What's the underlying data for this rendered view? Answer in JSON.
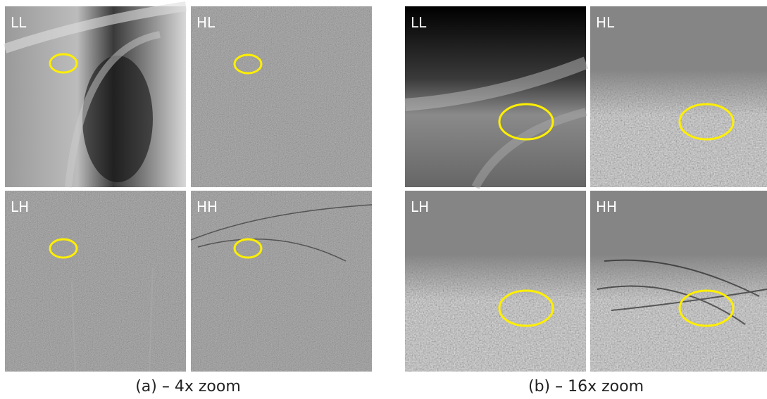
{
  "groups": [
    {
      "caption": "(a) – 4x zoom",
      "panels": [
        {
          "label": "LL"
        },
        {
          "label": "HL"
        },
        {
          "label": "LH"
        },
        {
          "label": "HH"
        }
      ]
    },
    {
      "caption": "(b) – 16x zoom",
      "panels": [
        {
          "label": "LL"
        },
        {
          "label": "HL"
        },
        {
          "label": "LH"
        },
        {
          "label": "HH"
        }
      ]
    }
  ]
}
